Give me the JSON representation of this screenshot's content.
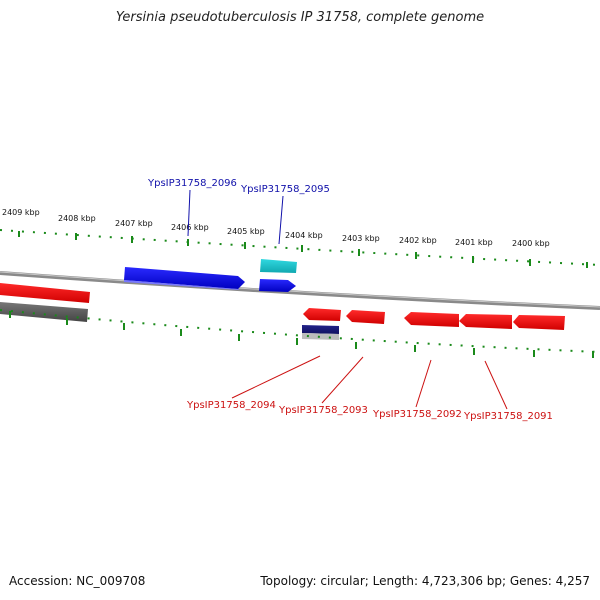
{
  "title": "Yersinia pseudotuberculosis IP 31758, complete genome",
  "footer": {
    "accession": "Accession: NC_009708",
    "stats": "Topology: circular; Length: 4,723,306 bp; Genes: 4,257"
  },
  "colors": {
    "forward_gene": "#1010ee",
    "forward_gene_alt": "#1ec8d0",
    "reverse_gene": "#ee1111",
    "reverse_gene_alt": "#1a1a7a",
    "other_gene": "#666666",
    "backbone": "#8a8a8a",
    "ticks": "#1a8a1a",
    "forward_label": "#1111aa",
    "reverse_label": "#cc1111"
  },
  "scale_labels": [
    "2409 kbp",
    "2408 kbp",
    "2407 kbp",
    "2406 kbp",
    "2405 kbp",
    "2404 kbp",
    "2403 kbp",
    "2402 kbp",
    "2401 kbp",
    "2400 kbp"
  ],
  "labels_forward": [
    "YpsIP31758_2096",
    "YpsIP31758_2095"
  ],
  "labels_reverse": [
    "YpsIP31758_2094",
    "YpsIP31758_2093",
    "YpsIP31758_2092",
    "YpsIP31758_2091"
  ]
}
